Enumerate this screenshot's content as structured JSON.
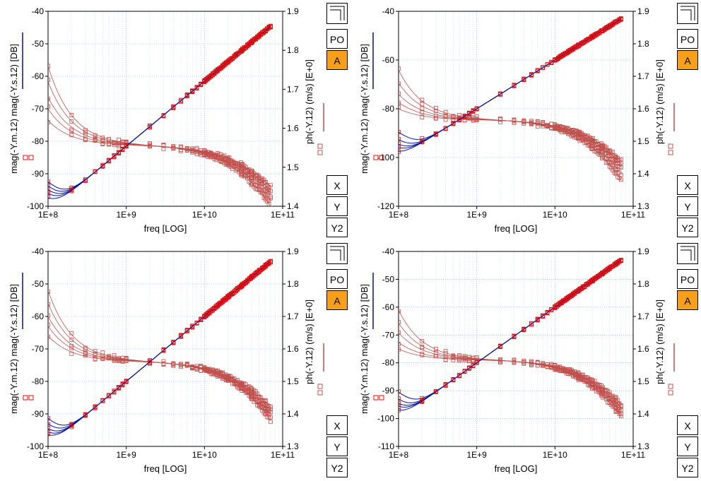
{
  "colors": {
    "model_line": "#0010a0",
    "meas_marker_mag": "#e01010",
    "phase": "#c0504d",
    "grid": "#5bb0e0",
    "active_btn": "#f6a01a"
  },
  "side_buttons": {
    "corner_icon": "zoom-corner-icon",
    "po": "PO",
    "a": "A",
    "x": "X",
    "y": "Y",
    "y2": "Y2"
  },
  "labels": {
    "xlabel": "freq  [LOG]",
    "ylabel_left_main": "mag(-Y.m.12)  mag(-Y.s.12)  [DB]",
    "ylabel_right_main": "ph(-Y.12) (m/s)  [E+0]",
    "x_ticks": [
      "1E+8",
      "1E+9",
      "1E+10",
      "1E+11"
    ]
  },
  "chart_data": [
    {
      "type": "line",
      "x_scale": "log",
      "xlim": [
        100000000.0,
        100000000000.0
      ],
      "ylim_left": [
        -100,
        -40
      ],
      "y_ticks_left": [
        "-40",
        "-50",
        "-60",
        "-70",
        "-80",
        "-90",
        "-100"
      ],
      "ylim_right": [
        1.4,
        1.9
      ],
      "y_ticks_right": [
        "1.9",
        "1.8",
        "1.7",
        "1.6",
        "1.5",
        "1.4"
      ],
      "mag_start": [
        -93,
        -94.5,
        -96,
        -97.5,
        -99.5
      ],
      "mag_slope_point": [
        1000000000.0,
        -81.5
      ],
      "mag_end": -43,
      "phase_start": [
        1.76,
        1.72,
        1.68,
        1.65,
        1.62
      ],
      "phase_plateau": 1.555,
      "phase_end": [
        1.4,
        1.415,
        1.43,
        1.44,
        1.45
      ],
      "grid": true
    },
    {
      "type": "line",
      "x_scale": "log",
      "xlim": [
        100000000.0,
        100000000000.0
      ],
      "ylim_left": [
        -120,
        -40
      ],
      "y_ticks_left": [
        "-40",
        "-60",
        "-80",
        "-100",
        "-120"
      ],
      "ylim_right": [
        1.3,
        1.9
      ],
      "y_ticks_right": [
        "1.9",
        "1.8",
        "1.7",
        "1.6",
        "1.5",
        "1.4",
        "1.3"
      ],
      "mag_start": [
        -90,
        -93.5,
        -96,
        -98,
        -101
      ],
      "mag_slope_point": [
        1000000000.0,
        -80
      ],
      "mag_end": -43,
      "phase_start": [
        1.72,
        1.68,
        1.645,
        1.62,
        1.6
      ],
      "phase_plateau": 1.565,
      "phase_end": [
        1.38,
        1.4,
        1.42,
        1.43,
        1.44
      ],
      "grid": true
    },
    {
      "type": "line",
      "x_scale": "log",
      "xlim": [
        100000000.0,
        100000000000.0
      ],
      "ylim_left": [
        -100,
        -40
      ],
      "y_ticks_left": [
        "-40",
        "-50",
        "-60",
        "-70",
        "-80",
        "-90",
        "-100"
      ],
      "ylim_right": [
        1.3,
        1.9
      ],
      "y_ticks_right": [
        "1.9",
        "1.8",
        "1.7",
        "1.6",
        "1.5",
        "1.4",
        "1.3"
      ],
      "mag_start": [
        -92,
        -94,
        -96,
        -97.5,
        -99
      ],
      "mag_slope_point": [
        1000000000.0,
        -80
      ],
      "mag_end": -43,
      "phase_start": [
        1.78,
        1.74,
        1.7,
        1.67,
        1.64
      ],
      "phase_plateau": 1.56,
      "phase_end": [
        1.38,
        1.39,
        1.4,
        1.41,
        1.42
      ],
      "grid": true
    },
    {
      "type": "line",
      "x_scale": "log",
      "xlim": [
        100000000.0,
        100000000000.0
      ],
      "ylim_left": [
        -110,
        -40
      ],
      "y_ticks_left": [
        "-40",
        "-50",
        "-60",
        "-70",
        "-80",
        "-90",
        "-100",
        "-110"
      ],
      "ylim_right": [
        1.3,
        1.9
      ],
      "y_ticks_right": [
        "1.9",
        "1.8",
        "1.7",
        "1.6",
        "1.5",
        "1.4",
        "1.3"
      ],
      "mag_start": [
        -91,
        -94,
        -96,
        -97.5,
        -100
      ],
      "mag_slope_point": [
        1000000000.0,
        -80
      ],
      "mag_end": -43,
      "phase_start": [
        1.72,
        1.68,
        1.65,
        1.62,
        1.6
      ],
      "phase_plateau": 1.565,
      "phase_end": [
        1.39,
        1.4,
        1.41,
        1.42,
        1.43
      ],
      "grid": true
    }
  ]
}
